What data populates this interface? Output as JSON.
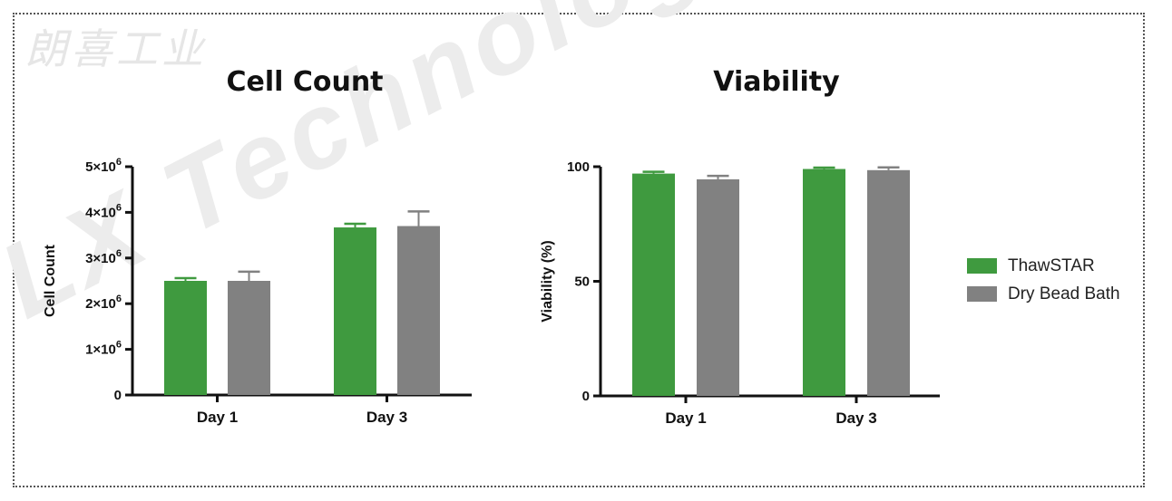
{
  "watermark": {
    "cn": "朗喜工业",
    "en": "LX Technologist"
  },
  "colors": {
    "thawstar": "#3f9a3f",
    "dry_bead_bath": "#818181"
  },
  "legend": [
    {
      "label": "ThawSTAR",
      "color": "#3f9a3f"
    },
    {
      "label": "Dry Bead Bath",
      "color": "#818181"
    }
  ],
  "chart_data": [
    {
      "type": "bar",
      "title": "Cell Count",
      "xlabel": "",
      "ylabel": "Cell Count",
      "ylim": [
        0,
        5000000
      ],
      "yticks": [
        {
          "value": 0,
          "label": "0"
        },
        {
          "value": 1000000,
          "label": "1×10",
          "exp": "6"
        },
        {
          "value": 2000000,
          "label": "2×10",
          "exp": "6"
        },
        {
          "value": 3000000,
          "label": "3×10",
          "exp": "6"
        },
        {
          "value": 4000000,
          "label": "4×10",
          "exp": "6"
        },
        {
          "value": 5000000,
          "label": "5×10",
          "exp": "6"
        }
      ],
      "categories": [
        "Day 1",
        "Day 3"
      ],
      "series": [
        {
          "name": "ThawSTAR",
          "values": [
            2500000,
            3670000
          ],
          "errors": [
            60000,
            80000
          ]
        },
        {
          "name": "Dry Bead Bath",
          "values": [
            2500000,
            3700000
          ],
          "errors": [
            200000,
            320000
          ]
        }
      ]
    },
    {
      "type": "bar",
      "title": "Viability",
      "xlabel": "",
      "ylabel": "Viability (%)",
      "ylim": [
        0,
        100
      ],
      "yticks": [
        {
          "value": 0,
          "label": "0"
        },
        {
          "value": 50,
          "label": "50"
        },
        {
          "value": 100,
          "label": "100"
        }
      ],
      "categories": [
        "Day 1",
        "Day 3"
      ],
      "series": [
        {
          "name": "ThawSTAR",
          "values": [
            97,
            99
          ],
          "errors": [
            0.8,
            0.6
          ]
        },
        {
          "name": "Dry Bead Bath",
          "values": [
            94.5,
            98.5
          ],
          "errors": [
            1.5,
            1.2
          ]
        }
      ]
    }
  ]
}
